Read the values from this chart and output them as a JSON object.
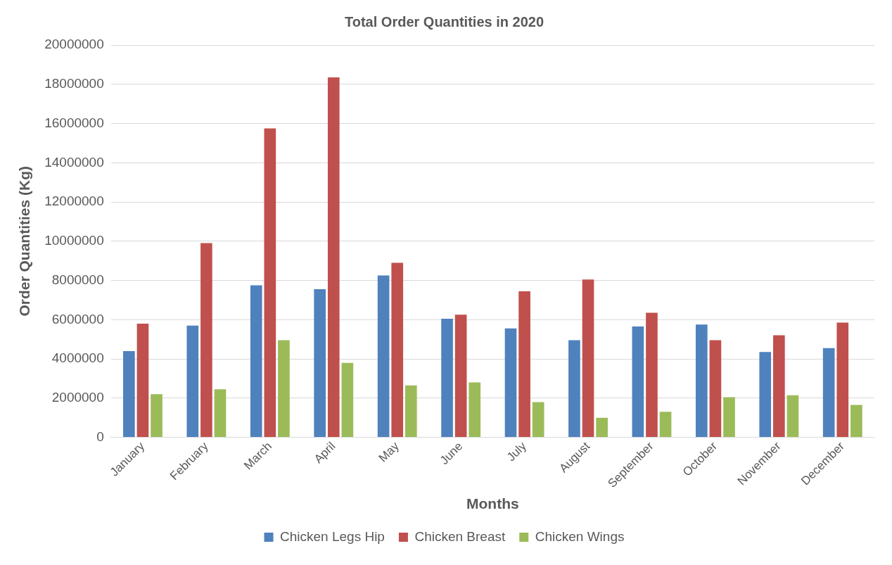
{
  "chart_data": {
    "type": "bar",
    "title": "Total Order Quantities in 2020",
    "xlabel": "Months",
    "ylabel": "Order Quantities (Kg)",
    "categories": [
      "January",
      "February",
      "March",
      "April",
      "May",
      "June",
      "July",
      "August",
      "September",
      "October",
      "November",
      "December"
    ],
    "series": [
      {
        "name": "Chicken Legs Hip",
        "color": "#4f81bd",
        "values": [
          4400000,
          5700000,
          7750000,
          7550000,
          8250000,
          6050000,
          5550000,
          4950000,
          5650000,
          5750000,
          4350000,
          4550000
        ]
      },
      {
        "name": "Chicken Breast",
        "color": "#c0504d",
        "values": [
          5800000,
          9900000,
          15750000,
          18350000,
          8900000,
          6250000,
          7450000,
          8050000,
          6350000,
          4950000,
          5200000,
          5850000
        ]
      },
      {
        "name": "Chicken Wings",
        "color": "#9bbb59",
        "values": [
          2200000,
          2450000,
          4950000,
          3800000,
          2650000,
          2800000,
          1800000,
          1000000,
          1300000,
          2050000,
          2150000,
          1650000
        ]
      }
    ],
    "ylim": [
      0,
      20000000
    ],
    "yticks": [
      0,
      2000000,
      4000000,
      6000000,
      8000000,
      10000000,
      12000000,
      14000000,
      16000000,
      18000000,
      20000000
    ],
    "grid": "y",
    "legend": "bottom"
  }
}
